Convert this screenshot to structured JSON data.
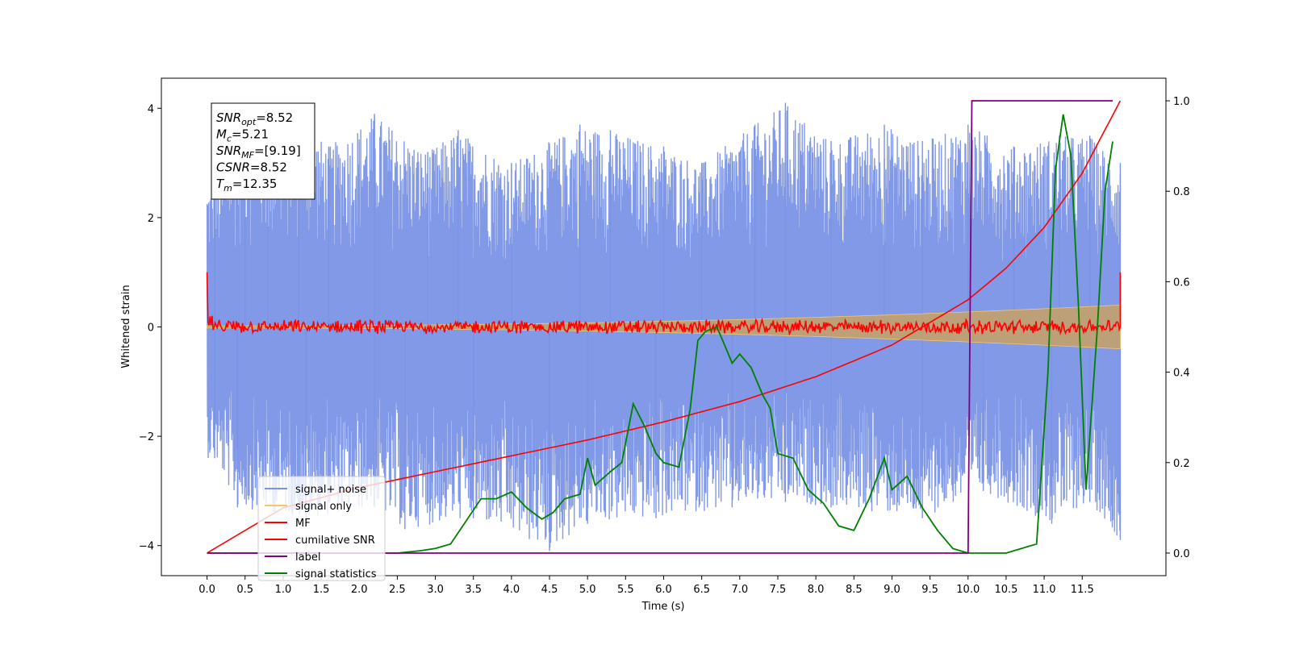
{
  "chart_data": {
    "type": "line",
    "title": "",
    "xlabel": "Time (s)",
    "ylabel": "Whitened strain",
    "y2label": "",
    "xlim": [
      -0.6,
      12.6
    ],
    "ylim": [
      -4.55,
      4.55
    ],
    "y2lim": [
      -0.05,
      1.05
    ],
    "x_ticks": [
      0.0,
      0.5,
      1.0,
      1.5,
      2.0,
      2.5,
      3.0,
      3.5,
      4.0,
      4.5,
      5.0,
      5.5,
      6.0,
      6.5,
      7.0,
      7.5,
      8.0,
      8.5,
      9.0,
      9.5,
      10.0,
      10.5,
      11.0,
      11.5
    ],
    "x_tick_labels": [
      "0.0",
      "0.5",
      "1.0",
      "1.5",
      "2.0",
      "2.5",
      "3.0",
      "3.5",
      "4.0",
      "4.5",
      "5.0",
      "5.5",
      "6.0",
      "6.5",
      "7.0",
      "7.5",
      "8.0",
      "8.5",
      "9.0",
      "9.5",
      "10.0",
      "10.5",
      "11.0",
      "11.5"
    ],
    "y_ticks": [
      4,
      2,
      0,
      -2,
      -4
    ],
    "y_tick_labels": [
      "4",
      "2",
      "0",
      "−2",
      "−4"
    ],
    "y2_ticks": [
      1.0,
      0.8,
      0.6,
      0.4,
      0.2,
      0.0
    ],
    "y2_tick_labels": [
      "1.0",
      "0.8",
      "0.6",
      "0.4",
      "0.2",
      "0.0"
    ],
    "grid": false,
    "legend_position": "lower-left",
    "annotation": [
      {
        "base": "SNR",
        "sub": "opt",
        "value": "=8.52"
      },
      {
        "base": "M",
        "sub": "c",
        "value": "=5.21"
      },
      {
        "base": "SNR",
        "sub": "MF",
        "value": "=[9.19]"
      },
      {
        "base": "CSNR",
        "sub": "",
        "value": "=8.52"
      },
      {
        "base": "T",
        "sub": "m",
        "value": "=12.35"
      }
    ],
    "series": [
      {
        "name": "signal+ noise",
        "color": "#7a93e6",
        "axis": "left",
        "description": "whitened noise band spanning roughly -3.5 to 4 across 0-12 s",
        "upper_peaks_x": [
          0.1,
          0.5,
          0.8,
          1.2,
          1.6,
          2.2,
          2.9,
          3.3,
          4.0,
          4.9,
          5.3,
          6.0,
          6.5,
          7.2,
          7.6,
          8.2,
          8.9,
          9.4,
          10.0,
          10.6,
          11.2,
          11.6,
          12.0
        ],
        "upper_peaks_y": [
          2.6,
          3.9,
          3.3,
          3.8,
          3.3,
          3.9,
          3.2,
          3.6,
          3.0,
          3.7,
          3.6,
          3.3,
          3.0,
          3.7,
          4.1,
          3.4,
          3.7,
          3.4,
          3.7,
          3.3,
          3.5,
          3.5,
          3.0
        ],
        "lower_peaks_x": [
          0.1,
          0.4,
          1.3,
          2.2,
          2.6,
          3.5,
          4.5,
          5.0,
          5.9,
          6.9,
          7.6,
          8.2,
          9.4,
          10.2,
          11.1,
          11.6,
          12.0
        ],
        "lower_peaks_y": [
          -2.4,
          -3.3,
          -3.5,
          -3.3,
          -3.7,
          -3.5,
          -4.1,
          -3.6,
          -3.5,
          -3.3,
          -3.2,
          -3.3,
          -3.5,
          -3.0,
          -3.6,
          -3.2,
          -3.9
        ]
      },
      {
        "name": "signal only",
        "color": "#f5c76a",
        "axis": "left",
        "description": "chirp whose envelope widens from about 0.02 at t=0 to about 0.4 at t=12"
      },
      {
        "name": "MF",
        "color": "#ff0000",
        "axis": "left",
        "description": "matched filter output, noise around 0 with amplitude about 0.1, spikes to 1.0 at both ends",
        "edge_values": [
          1.0,
          1.0
        ]
      },
      {
        "name": "cumilative SNR",
        "color": "#ff0000",
        "axis": "right",
        "x": [
          0.0,
          1.0,
          2.0,
          3.0,
          4.0,
          5.0,
          6.0,
          7.0,
          8.0,
          9.0,
          10.0,
          10.5,
          11.0,
          11.5,
          12.0
        ],
        "y": [
          0.0,
          0.1,
          0.145,
          0.18,
          0.215,
          0.25,
          0.29,
          0.335,
          0.39,
          0.46,
          0.56,
          0.63,
          0.72,
          0.84,
          1.0
        ]
      },
      {
        "name": "label",
        "color": "#800080",
        "axis": "right",
        "x": [
          0.0,
          10.0,
          10.05,
          11.9
        ],
        "y": [
          0.0,
          0.0,
          1.0,
          1.0
        ]
      },
      {
        "name": "signal statistics",
        "color": "#008000",
        "axis": "right",
        "x": [
          0.0,
          2.5,
          2.8,
          3.0,
          3.2,
          3.4,
          3.6,
          3.8,
          4.0,
          4.2,
          4.4,
          4.55,
          4.7,
          4.9,
          5.0,
          5.1,
          5.3,
          5.45,
          5.6,
          5.75,
          5.9,
          6.0,
          6.2,
          6.35,
          6.45,
          6.55,
          6.7,
          6.8,
          6.9,
          7.0,
          7.15,
          7.3,
          7.4,
          7.5,
          7.7,
          7.9,
          8.1,
          8.3,
          8.5,
          8.7,
          8.9,
          9.0,
          9.2,
          9.4,
          9.6,
          9.8,
          10.0,
          10.5,
          10.9,
          11.05,
          11.15,
          11.25,
          11.35,
          11.45,
          11.55,
          11.7,
          11.8,
          11.9
        ],
        "y": [
          0.0,
          0.0,
          0.005,
          0.01,
          0.02,
          0.07,
          0.12,
          0.12,
          0.135,
          0.1,
          0.075,
          0.09,
          0.12,
          0.13,
          0.21,
          0.15,
          0.18,
          0.2,
          0.33,
          0.28,
          0.22,
          0.2,
          0.19,
          0.32,
          0.47,
          0.49,
          0.5,
          0.46,
          0.42,
          0.44,
          0.41,
          0.35,
          0.32,
          0.22,
          0.21,
          0.14,
          0.11,
          0.06,
          0.05,
          0.12,
          0.21,
          0.14,
          0.17,
          0.1,
          0.05,
          0.01,
          0.0,
          0.0,
          0.02,
          0.4,
          0.85,
          0.97,
          0.88,
          0.55,
          0.14,
          0.5,
          0.8,
          0.91
        ]
      }
    ]
  }
}
